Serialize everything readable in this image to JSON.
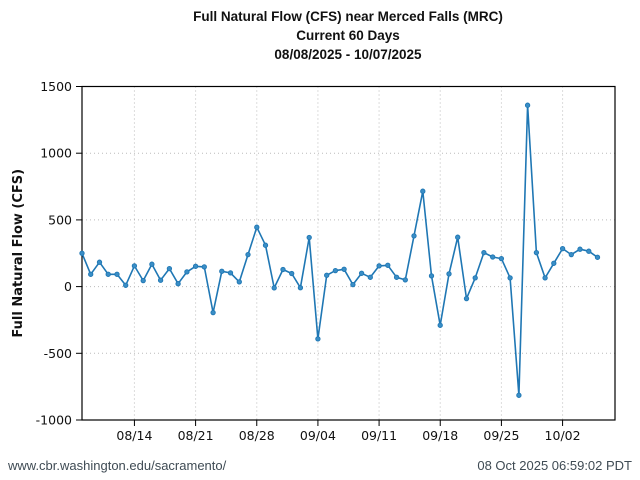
{
  "title": {
    "line1": "Full Natural Flow (CFS) near Merced Falls (MRC)",
    "line2": "Current 60 Days",
    "line3": "08/08/2025 - 10/07/2025"
  },
  "chart_data": {
    "type": "line",
    "title": "Full Natural Flow (CFS) near Merced Falls (MRC) Current 60 Days 08/08/2025 - 10/07/2025",
    "xlabel": "",
    "ylabel": "Full Natural Flow (CFS)",
    "ylim": [
      -1000,
      1500
    ],
    "yticks": [
      -1000,
      -500,
      0,
      500,
      1000,
      1500
    ],
    "xticks": [
      "08/14",
      "08/21",
      "08/28",
      "09/04",
      "09/11",
      "09/18",
      "09/25",
      "10/02"
    ],
    "grid": true,
    "legend_position": "none",
    "line_color": "#1f77b4",
    "marker_color": "#3a8ec6",
    "series": [
      {
        "name": "Full Natural Flow",
        "x": [
          "08/08",
          "08/09",
          "08/10",
          "08/11",
          "08/12",
          "08/13",
          "08/14",
          "08/15",
          "08/16",
          "08/17",
          "08/18",
          "08/19",
          "08/20",
          "08/21",
          "08/22",
          "08/23",
          "08/24",
          "08/25",
          "08/26",
          "08/27",
          "08/28",
          "08/29",
          "08/30",
          "08/31",
          "09/01",
          "09/02",
          "09/03",
          "09/04",
          "09/05",
          "09/06",
          "09/07",
          "09/08",
          "09/09",
          "09/10",
          "09/11",
          "09/12",
          "09/13",
          "09/14",
          "09/15",
          "09/16",
          "09/17",
          "09/18",
          "09/19",
          "09/20",
          "09/21",
          "09/22",
          "09/23",
          "09/24",
          "09/25",
          "09/26",
          "09/27",
          "09/28",
          "09/29",
          "09/30",
          "10/01",
          "10/02",
          "10/03",
          "10/04",
          "10/05",
          "10/06"
        ],
        "values": [
          250,
          92,
          183,
          92,
          92,
          10,
          155,
          45,
          168,
          48,
          135,
          22,
          110,
          152,
          148,
          -195,
          115,
          103,
          35,
          240,
          445,
          310,
          -10,
          128,
          98,
          -8,
          368,
          -392,
          85,
          120,
          130,
          15,
          100,
          70,
          155,
          160,
          70,
          50,
          380,
          715,
          80,
          -290,
          95,
          370,
          -90,
          65,
          255,
          222,
          210,
          65,
          -815,
          1360,
          255,
          65,
          175,
          285,
          240,
          280,
          265,
          220
        ]
      }
    ]
  },
  "footer": {
    "url": "www.cbr.washington.edu/sacramento/",
    "timestamp": "08 Oct 2025 06:59:02 PDT"
  }
}
